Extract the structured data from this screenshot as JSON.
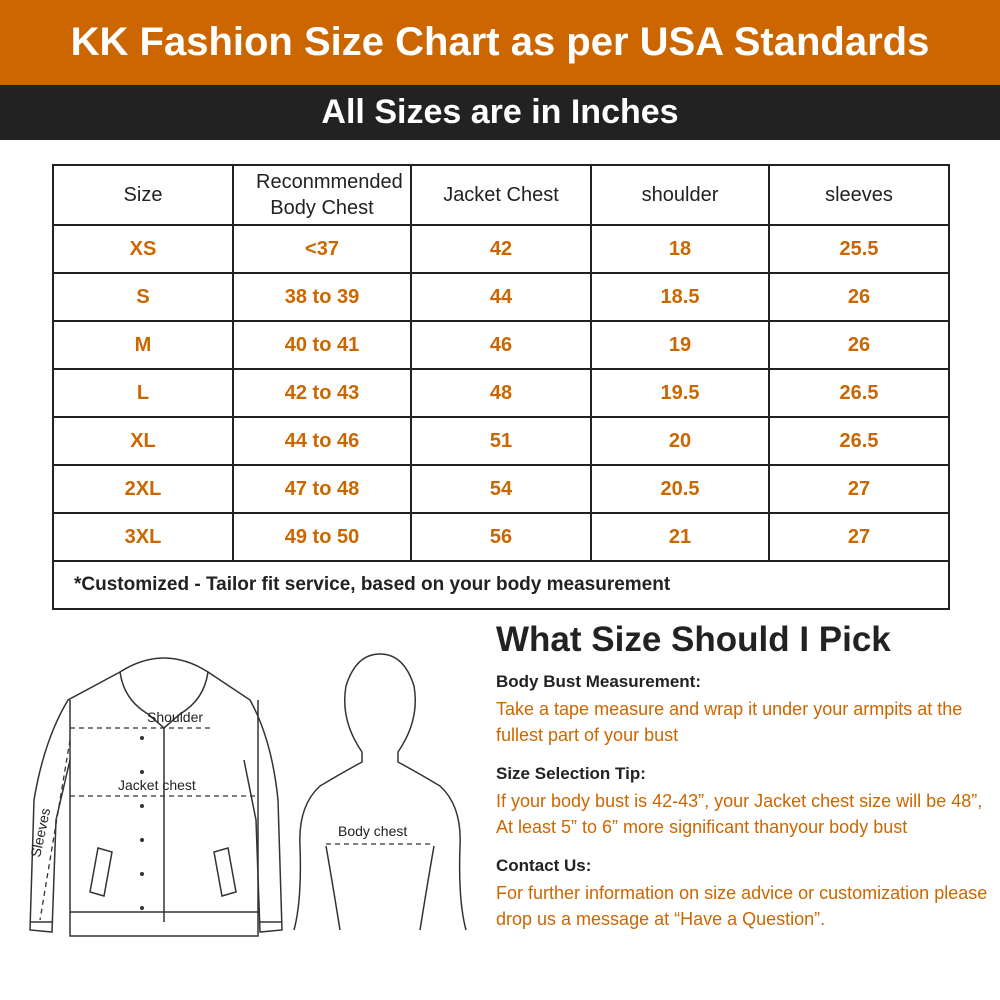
{
  "header": {
    "title": "KK Fashion Size Chart as per USA Standards",
    "subtitle": "All Sizes are in Inches"
  },
  "table": {
    "headers": [
      "Size",
      "Reconmmended Body Chest",
      "Jacket Chest",
      "shoulder",
      "sleeves"
    ],
    "rows": [
      [
        "XS",
        "<37",
        "42",
        "18",
        "25.5"
      ],
      [
        "S",
        "38 to 39",
        "44",
        "18.5",
        "26"
      ],
      [
        "M",
        "40 to 41",
        "46",
        "19",
        "26"
      ],
      [
        "L",
        "42 to 43",
        "48",
        "19.5",
        "26.5"
      ],
      [
        "XL",
        "44 to 46",
        "51",
        "20",
        "26.5"
      ],
      [
        "2XL",
        "47 to 48",
        "54",
        "20.5",
        "27"
      ],
      [
        "3XL",
        "49 to 50",
        "56",
        "21",
        "27"
      ]
    ],
    "note": "*Customized - Tailor fit service, based on your body measurement"
  },
  "illustration": {
    "shoulder_label": "Shoulder",
    "jacket_chest_label": "Jacket chest",
    "sleeves_label": "Sleeves",
    "body_chest_label": "Body chest"
  },
  "info": {
    "heading": "What Size Should I Pick",
    "sections": [
      {
        "label": "Body Bust Measurement:",
        "text": "Take a tape measure and wrap it under your armpits at the fullest part of your bust"
      },
      {
        "label": "Size Selection Tip:",
        "text": "If your body bust is 42-43”, your Jacket chest size will be 48”, At least 5” to 6” more significant thanyour body bust"
      },
      {
        "label": "Contact Us:",
        "text": "For further information on size advice or customization please drop us a message at “Have a Question”."
      }
    ]
  },
  "colors": {
    "accent": "#cc6600",
    "dark_bar": "#222222"
  }
}
